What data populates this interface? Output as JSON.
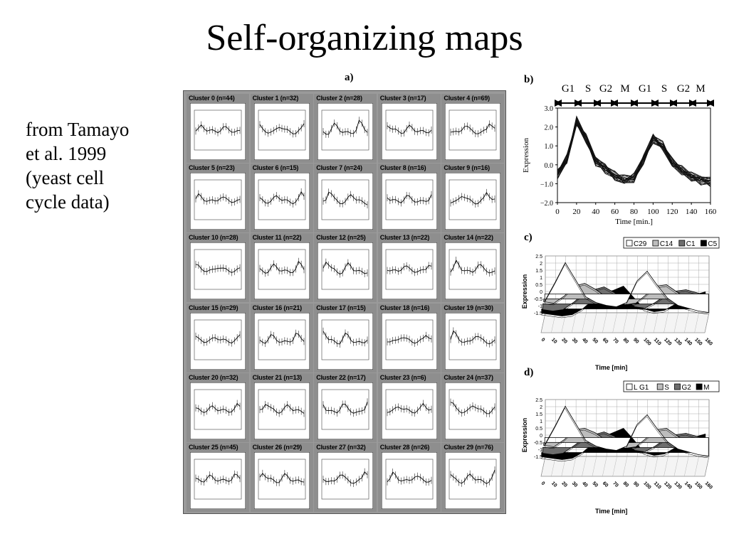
{
  "slide": {
    "title": "Self-organizing maps",
    "caption_lines": [
      "from Tamayo",
      "et al. 1999",
      "(yeast cell",
      "cycle data)"
    ]
  },
  "panels": {
    "a_label": "a)",
    "b_label": "b)",
    "c_label": "c)",
    "d_label": "d)"
  },
  "clusters": [
    {
      "label": "Cluster 0 (n=44)"
    },
    {
      "label": "Cluster 1 (n=32)"
    },
    {
      "label": "Cluster 2 (n=28)"
    },
    {
      "label": "Cluster 3 (n=17)"
    },
    {
      "label": "Cluster 4 (n=69)"
    },
    {
      "label": "Cluster 5 (n=23)"
    },
    {
      "label": "Cluster 6 (n=15)"
    },
    {
      "label": "Cluster 7 (n=24)"
    },
    {
      "label": "Cluster 8 (n=16)"
    },
    {
      "label": "Cluster 9 (n=16)"
    },
    {
      "label": "Cluster 10 (n=28)"
    },
    {
      "label": "Cluster 11 (n=22)"
    },
    {
      "label": "Cluster 12 (n=25)"
    },
    {
      "label": "Cluster 13 (n=22)"
    },
    {
      "label": "Cluster 14 (n=22)"
    },
    {
      "label": "Cluster 15 (n=29)"
    },
    {
      "label": "Cluster 16 (n=21)"
    },
    {
      "label": "Cluster 17 (n=15)"
    },
    {
      "label": "Cluster 18 (n=16)"
    },
    {
      "label": "Cluster 19 (n=30)"
    },
    {
      "label": "Cluster 20 (n=32)"
    },
    {
      "label": "Cluster 21 (n=13)"
    },
    {
      "label": "Cluster 22 (n=17)"
    },
    {
      "label": "Cluster 23 (n=6)"
    },
    {
      "label": "Cluster 24 (n=37)"
    },
    {
      "label": "Cluster 25 (n=45)"
    },
    {
      "label": "Cluster 26 (n=29)"
    },
    {
      "label": "Cluster 27 (n=32)"
    },
    {
      "label": "Cluster 28 (n=26)"
    },
    {
      "label": "Cluster 29 (n=76)"
    }
  ],
  "panel_b": {
    "phases": [
      "G1",
      "S",
      "G2",
      "M",
      "G1",
      "S",
      "G2",
      "M"
    ],
    "ylabel": "Expression",
    "xlabel": "Time [min.]",
    "yticks": [
      "3.0",
      "2.0",
      "1.0",
      "0.0",
      "−1.0",
      "−2.0"
    ],
    "xticks": [
      "0",
      "20",
      "40",
      "60",
      "80",
      "100",
      "120",
      "140",
      "160"
    ]
  },
  "panel_c": {
    "legend": [
      "C29",
      "C14",
      "C1",
      "C5"
    ],
    "legend_colors": [
      "#ffffff",
      "#bdbdbd",
      "#6e6e6e",
      "#000000"
    ],
    "ylabel": "Expression",
    "xlabel": "Time [min]",
    "yticks": [
      "2.5",
      "2",
      "1.5",
      "1",
      "0.5",
      "0",
      "-0.5",
      "-1",
      "-1.5"
    ],
    "xticks": [
      "0",
      "10",
      "20",
      "30",
      "40",
      "50",
      "60",
      "70",
      "80",
      "90",
      "100",
      "110",
      "120",
      "130",
      "140",
      "150",
      "160"
    ]
  },
  "panel_d": {
    "legend": [
      "L G1",
      "S",
      "G2",
      "M"
    ],
    "legend_colors": [
      "#ffffff",
      "#bdbdbd",
      "#6e6e6e",
      "#000000"
    ],
    "ylabel": "Expression",
    "xlabel": "Time [min]",
    "yticks": [
      "2.5",
      "2",
      "1.5",
      "1",
      "0.5",
      "0",
      "-0.5",
      "-1",
      "-1.5"
    ],
    "xticks": [
      "0",
      "10",
      "20",
      "30",
      "40",
      "50",
      "60",
      "70",
      "80",
      "90",
      "100",
      "110",
      "120",
      "130",
      "140",
      "150",
      "160"
    ]
  },
  "chart_data": [
    {
      "type": "line",
      "panel": "b",
      "xlabel": "Time [min.]",
      "ylabel": "Expression",
      "xlim": [
        0,
        160
      ],
      "ylim": [
        -2.0,
        3.0
      ],
      "x": [
        0,
        10,
        20,
        30,
        40,
        50,
        60,
        70,
        80,
        90,
        100,
        110,
        120,
        130,
        140,
        150,
        160
      ],
      "series": [
        {
          "values": [
            -0.5,
            0.3,
            2.3,
            1.4,
            0.2,
            -0.2,
            -0.6,
            -0.8,
            -0.7,
            0.3,
            1.4,
            1.0,
            0.1,
            -0.3,
            -0.6,
            -0.8,
            -0.9
          ]
        }
      ]
    },
    {
      "type": "area",
      "panel": "c",
      "xlabel": "Time [min]",
      "ylabel": "Expression",
      "ylim": [
        -1.5,
        2.5
      ],
      "x": [
        0,
        10,
        20,
        30,
        40,
        50,
        60,
        70,
        80,
        90,
        100,
        110,
        120,
        130,
        140,
        150,
        160
      ],
      "series": [
        {
          "name": "C29",
          "values": [
            -0.5,
            0.8,
            2.2,
            1.0,
            -0.2,
            -0.6,
            -0.8,
            -0.9,
            -0.6,
            0.9,
            1.6,
            0.6,
            -0.3,
            -0.8,
            -1.0,
            -1.2,
            -1.3
          ]
        },
        {
          "name": "C14",
          "values": [
            -0.2,
            -0.3,
            0.2,
            0.9,
            1.1,
            0.7,
            0.2,
            -0.2,
            -0.4,
            -0.3,
            0.3,
            0.9,
            1.0,
            0.5,
            0.0,
            -0.3,
            -0.4
          ]
        },
        {
          "name": "C1",
          "values": [
            -0.4,
            -0.5,
            -0.4,
            0.1,
            0.7,
            1.0,
            1.2,
            0.8,
            0.3,
            -0.2,
            -0.3,
            0.1,
            0.6,
            0.9,
            1.0,
            0.8,
            0.6
          ]
        },
        {
          "name": "C5",
          "values": [
            -0.3,
            -0.4,
            -0.5,
            -0.4,
            0.0,
            0.6,
            1.1,
            1.3,
            1.6,
            0.8,
            0.0,
            -0.2,
            -0.1,
            0.3,
            0.7,
            1.0,
            1.2
          ]
        }
      ]
    },
    {
      "type": "area",
      "panel": "d",
      "xlabel": "Time [min]",
      "ylabel": "Expression",
      "ylim": [
        -1.5,
        2.5
      ],
      "x": [
        0,
        10,
        20,
        30,
        40,
        50,
        60,
        70,
        80,
        90,
        100,
        110,
        120,
        130,
        140,
        150,
        160
      ],
      "series": [
        {
          "name": "L G1",
          "values": [
            -0.5,
            0.8,
            2.2,
            1.0,
            -0.2,
            -0.6,
            -0.8,
            -0.9,
            -0.6,
            0.9,
            1.6,
            0.6,
            -0.3,
            -0.8,
            -1.0,
            -1.2,
            -1.3
          ]
        },
        {
          "name": "S",
          "values": [
            -0.2,
            -0.3,
            0.2,
            0.9,
            1.0,
            0.7,
            0.2,
            -0.2,
            -0.4,
            -0.3,
            0.3,
            0.9,
            1.0,
            0.5,
            0.0,
            -0.3,
            -0.4
          ]
        },
        {
          "name": "G2",
          "values": [
            -0.4,
            -0.5,
            -0.4,
            0.1,
            0.6,
            0.9,
            1.1,
            0.8,
            0.3,
            -0.2,
            -0.3,
            0.1,
            0.6,
            0.9,
            1.0,
            0.8,
            0.6
          ]
        },
        {
          "name": "M",
          "values": [
            -0.3,
            -0.4,
            -0.5,
            -0.4,
            0.0,
            0.6,
            1.1,
            1.4,
            1.7,
            0.9,
            0.0,
            -0.2,
            -0.1,
            0.3,
            0.8,
            1.1,
            1.3
          ]
        }
      ]
    }
  ]
}
